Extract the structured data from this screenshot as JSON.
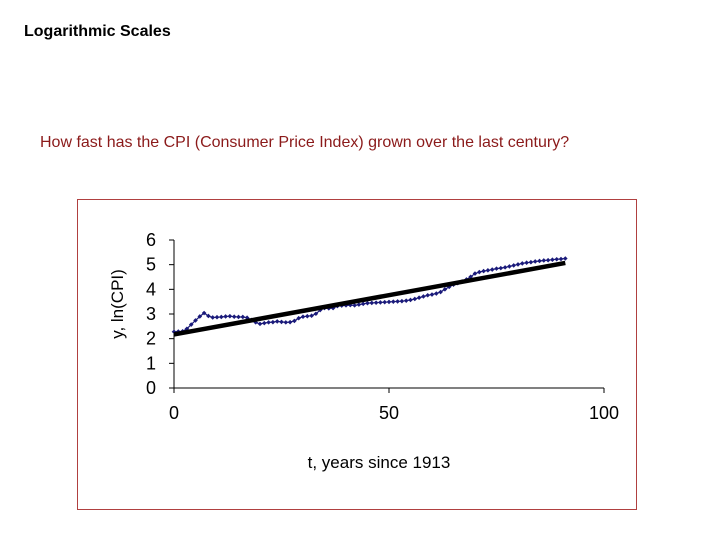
{
  "slide": {
    "title": "Logarithmic Scales",
    "question": "How fast has the CPI (Consumer Price Index) grown over the last century?"
  },
  "colors": {
    "title": "#000000",
    "question": "#8b1a1a",
    "frame_border": "#b04040",
    "data_series": "#1a1a7a",
    "trend_line": "#000000"
  },
  "chart_data": {
    "type": "scatter",
    "title": "",
    "xlabel": "t, years since 1913",
    "ylabel": "y, ln(CPI)",
    "xlim": [
      0,
      100
    ],
    "ylim": [
      0,
      6
    ],
    "xticks": [
      0,
      50,
      100
    ],
    "yticks": [
      0,
      1,
      2,
      3,
      4,
      5,
      6
    ],
    "grid": false,
    "legend": "none",
    "series": [
      {
        "name": "ln(CPI)",
        "style": "line-markers",
        "x": [
          0,
          1,
          2,
          3,
          4,
          5,
          6,
          7,
          8,
          9,
          10,
          11,
          12,
          13,
          14,
          15,
          16,
          17,
          18,
          19,
          20,
          21,
          22,
          23,
          24,
          25,
          26,
          27,
          28,
          29,
          30,
          31,
          32,
          33,
          34,
          35,
          36,
          37,
          38,
          39,
          40,
          41,
          42,
          43,
          44,
          45,
          46,
          47,
          48,
          49,
          50,
          51,
          52,
          53,
          54,
          55,
          56,
          57,
          58,
          59,
          60,
          61,
          62,
          63,
          64,
          65,
          66,
          67,
          68,
          69,
          70,
          71,
          72,
          73,
          74,
          75,
          76,
          77,
          78,
          79,
          80,
          81,
          82,
          83,
          84,
          85,
          86,
          87,
          88,
          89,
          90,
          91
        ],
        "y": [
          2.28,
          2.29,
          2.3,
          2.4,
          2.57,
          2.74,
          2.9,
          3.04,
          2.92,
          2.86,
          2.87,
          2.88,
          2.9,
          2.91,
          2.89,
          2.88,
          2.88,
          2.85,
          2.76,
          2.66,
          2.6,
          2.63,
          2.66,
          2.67,
          2.7,
          2.68,
          2.66,
          2.67,
          2.72,
          2.83,
          2.89,
          2.91,
          2.93,
          3.01,
          3.16,
          3.24,
          3.23,
          3.24,
          3.32,
          3.34,
          3.35,
          3.36,
          3.35,
          3.38,
          3.41,
          3.44,
          3.45,
          3.46,
          3.47,
          3.48,
          3.49,
          3.5,
          3.51,
          3.52,
          3.54,
          3.57,
          3.61,
          3.66,
          3.71,
          3.76,
          3.79,
          3.83,
          3.89,
          4.0,
          4.1,
          4.19,
          4.25,
          4.32,
          4.4,
          4.51,
          4.64,
          4.7,
          4.74,
          4.77,
          4.8,
          4.84,
          4.86,
          4.89,
          4.93,
          4.97,
          5.01,
          5.05,
          5.08,
          5.1,
          5.13,
          5.15,
          5.17,
          5.18,
          5.2,
          5.22,
          5.23,
          5.25
        ]
      },
      {
        "name": "Linear trend",
        "style": "thick-line",
        "x": [
          0,
          91
        ],
        "y": [
          2.17,
          5.07
        ]
      }
    ]
  }
}
